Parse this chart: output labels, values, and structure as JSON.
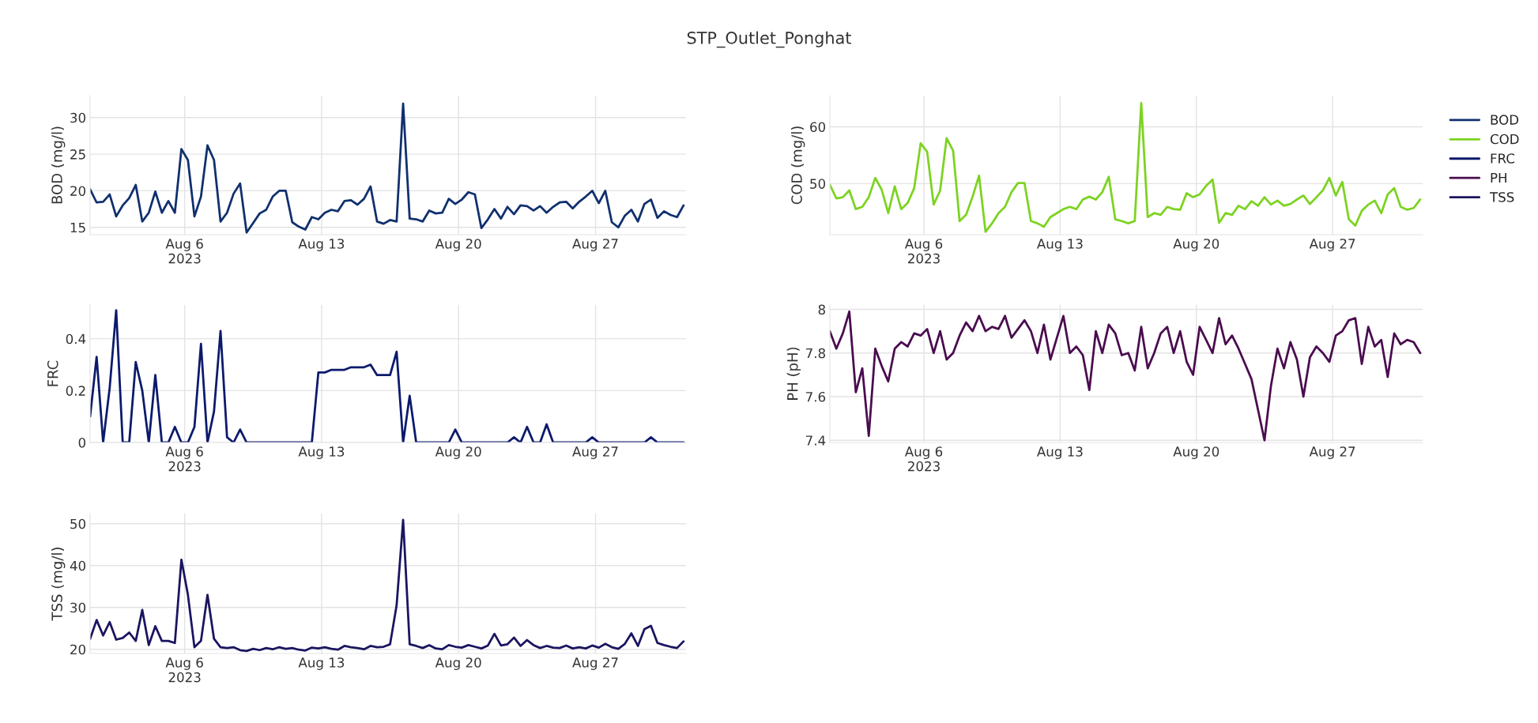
{
  "chart_data": [
    {
      "type": "line",
      "title": "STP_Outlet_Ponghat",
      "ylabel": "BOD (mg/l)",
      "grid": true,
      "legend": "top right",
      "x": [
        "2023-08-01T04:00",
        "2023-08-01T12:00",
        "2023-08-01T20:00",
        "2023-08-02T04:00",
        "2023-08-02T12:00",
        "2023-08-02T20:00",
        "2023-08-03T04:00",
        "2023-08-03T12:00",
        "2023-08-03T20:00",
        "2023-08-04T04:00",
        "2023-08-04T12:00",
        "2023-08-04T20:00",
        "2023-08-05T04:00",
        "2023-08-05T12:00",
        "2023-08-05T20:00",
        "2023-08-06T04:00",
        "2023-08-06T12:00",
        "2023-08-06T20:00",
        "2023-08-07T04:00",
        "2023-08-07T12:00",
        "2023-08-07T20:00",
        "2023-08-08T04:00",
        "2023-08-08T12:00",
        "2023-08-08T20:00",
        "2023-08-09T04:00",
        "2023-08-09T12:00",
        "2023-08-09T20:00",
        "2023-08-10T04:00",
        "2023-08-10T12:00",
        "2023-08-10T20:00",
        "2023-08-11T04:00",
        "2023-08-11T12:00",
        "2023-08-11T20:00",
        "2023-08-12T04:00",
        "2023-08-12T12:00",
        "2023-08-12T20:00",
        "2023-08-13T04:00",
        "2023-08-13T12:00",
        "2023-08-13T20:00",
        "2023-08-14T04:00",
        "2023-08-14T12:00",
        "2023-08-14T20:00",
        "2023-08-15T04:00",
        "2023-08-15T12:00",
        "2023-08-15T20:00",
        "2023-08-16T04:00",
        "2023-08-16T12:00",
        "2023-08-16T20:00",
        "2023-08-17T04:00",
        "2023-08-17T12:00",
        "2023-08-17T20:00",
        "2023-08-18T04:00",
        "2023-08-18T12:00",
        "2023-08-18T20:00",
        "2023-08-19T04:00",
        "2023-08-19T12:00",
        "2023-08-19T20:00",
        "2023-08-20T04:00",
        "2023-08-20T12:00",
        "2023-08-20T20:00",
        "2023-08-21T04:00",
        "2023-08-21T12:00",
        "2023-08-21T20:00",
        "2023-08-22T04:00",
        "2023-08-22T12:00",
        "2023-08-22T20:00",
        "2023-08-23T04:00",
        "2023-08-23T12:00",
        "2023-08-23T20:00",
        "2023-08-24T04:00",
        "2023-08-24T12:00",
        "2023-08-24T20:00",
        "2023-08-25T04:00",
        "2023-08-25T12:00",
        "2023-08-25T20:00",
        "2023-08-26T04:00",
        "2023-08-26T12:00",
        "2023-08-26T20:00",
        "2023-08-27T04:00",
        "2023-08-27T12:00",
        "2023-08-27T20:00",
        "2023-08-28T04:00",
        "2023-08-28T12:00",
        "2023-08-28T20:00",
        "2023-08-29T04:00",
        "2023-08-29T12:00",
        "2023-08-29T20:00",
        "2023-08-30T04:00",
        "2023-08-30T12:00",
        "2023-08-30T20:00",
        "2023-08-31T04:00",
        "2023-08-31T12:00"
      ],
      "xlim": [
        "2023-08-01T04:00",
        "2023-08-31T15:00"
      ],
      "xticks": [
        {
          "value": "2023-08-06",
          "label": "Aug 6\n2023"
        },
        {
          "value": "2023-08-13",
          "label": "Aug 13"
        },
        {
          "value": "2023-08-20",
          "label": "Aug 20"
        },
        {
          "value": "2023-08-27",
          "label": "Aug 27"
        }
      ],
      "ylim": [
        14,
        33
      ],
      "yticks": [
        15,
        20,
        25,
        30
      ],
      "series": [
        {
          "name": "BOD",
          "color": "#10306e",
          "values": [
            20.2,
            18.4,
            18.5,
            19.5,
            16.5,
            18.0,
            19.0,
            20.8,
            15.8,
            17.0,
            19.9,
            17.0,
            18.6,
            17.0,
            25.7,
            24.2,
            16.5,
            19.2,
            26.2,
            24.2,
            15.8,
            17.0,
            19.6,
            21.0,
            14.3,
            15.6,
            16.9,
            17.4,
            19.2,
            20.0,
            20.0,
            15.7,
            15.1,
            14.7,
            16.4,
            16.1,
            17.0,
            17.4,
            17.2,
            18.6,
            18.7,
            18.1,
            18.9,
            20.6,
            15.8,
            15.5,
            16.0,
            15.8,
            31.9,
            16.2,
            16.1,
            15.8,
            17.3,
            16.9,
            17.0,
            18.9,
            18.2,
            18.8,
            19.8,
            19.5,
            14.9,
            16.1,
            17.5,
            16.2,
            17.8,
            16.8,
            18.0,
            17.9,
            17.3,
            17.9,
            17.0,
            17.8,
            18.4,
            18.5,
            17.6,
            18.5,
            19.2,
            20.0,
            18.3,
            20.0,
            15.7,
            15.0,
            16.6,
            17.4,
            15.8,
            18.2,
            18.8,
            16.3,
            17.2,
            16.7,
            16.4,
            18.0
          ]
        }
      ]
    },
    {
      "type": "line",
      "ylabel": "COD (mg/l)",
      "grid": true,
      "legend": "top right",
      "x": [
        "2023-08-01T04:00",
        "2023-08-01T12:00",
        "2023-08-01T20:00",
        "2023-08-02T04:00",
        "2023-08-02T12:00",
        "2023-08-02T20:00",
        "2023-08-03T04:00",
        "2023-08-03T12:00",
        "2023-08-03T20:00",
        "2023-08-04T04:00",
        "2023-08-04T12:00",
        "2023-08-04T20:00",
        "2023-08-05T04:00",
        "2023-08-05T12:00",
        "2023-08-05T20:00",
        "2023-08-06T04:00",
        "2023-08-06T12:00",
        "2023-08-06T20:00",
        "2023-08-07T04:00",
        "2023-08-07T12:00",
        "2023-08-07T20:00",
        "2023-08-08T04:00",
        "2023-08-08T12:00",
        "2023-08-08T20:00",
        "2023-08-09T04:00",
        "2023-08-09T12:00",
        "2023-08-09T20:00",
        "2023-08-10T04:00",
        "2023-08-10T12:00",
        "2023-08-10T20:00",
        "2023-08-11T04:00",
        "2023-08-11T12:00",
        "2023-08-11T20:00",
        "2023-08-12T04:00",
        "2023-08-12T12:00",
        "2023-08-12T20:00",
        "2023-08-13T04:00",
        "2023-08-13T12:00",
        "2023-08-13T20:00",
        "2023-08-14T04:00",
        "2023-08-14T12:00",
        "2023-08-14T20:00",
        "2023-08-15T04:00",
        "2023-08-15T12:00",
        "2023-08-15T20:00",
        "2023-08-16T04:00",
        "2023-08-16T12:00",
        "2023-08-16T20:00",
        "2023-08-17T04:00",
        "2023-08-17T12:00",
        "2023-08-17T20:00",
        "2023-08-18T04:00",
        "2023-08-18T12:00",
        "2023-08-18T20:00",
        "2023-08-19T04:00",
        "2023-08-19T12:00",
        "2023-08-19T20:00",
        "2023-08-20T04:00",
        "2023-08-20T12:00",
        "2023-08-20T20:00",
        "2023-08-21T04:00",
        "2023-08-21T12:00",
        "2023-08-21T20:00",
        "2023-08-22T04:00",
        "2023-08-22T12:00",
        "2023-08-22T20:00",
        "2023-08-23T04:00",
        "2023-08-23T12:00",
        "2023-08-23T20:00",
        "2023-08-24T04:00",
        "2023-08-24T12:00",
        "2023-08-24T20:00",
        "2023-08-25T04:00",
        "2023-08-25T12:00",
        "2023-08-25T20:00",
        "2023-08-26T04:00",
        "2023-08-26T12:00",
        "2023-08-26T20:00",
        "2023-08-27T04:00",
        "2023-08-27T12:00",
        "2023-08-27T20:00",
        "2023-08-28T04:00",
        "2023-08-28T12:00",
        "2023-08-28T20:00",
        "2023-08-29T04:00",
        "2023-08-29T12:00",
        "2023-08-29T20:00",
        "2023-08-30T04:00",
        "2023-08-30T12:00",
        "2023-08-30T20:00",
        "2023-08-31T04:00",
        "2023-08-31T12:00"
      ],
      "xlim": [
        "2023-08-01T04:00",
        "2023-08-31T15:00"
      ],
      "xticks": [
        {
          "value": "2023-08-06",
          "label": "Aug 6\n2023"
        },
        {
          "value": "2023-08-13",
          "label": "Aug 13"
        },
        {
          "value": "2023-08-20",
          "label": "Aug 20"
        },
        {
          "value": "2023-08-27",
          "label": "Aug 27"
        }
      ],
      "ylim": [
        41,
        65.5
      ],
      "yticks": [
        50,
        60
      ],
      "series": [
        {
          "name": "COD",
          "color": "#7dd321",
          "values": [
            49.8,
            47.4,
            47.6,
            48.8,
            45.5,
            45.9,
            47.6,
            51.0,
            48.9,
            44.8,
            49.5,
            45.5,
            46.6,
            49.2,
            57.1,
            55.6,
            46.3,
            48.8,
            58.0,
            55.8,
            43.4,
            44.5,
            47.7,
            51.4,
            41.5,
            43.0,
            44.8,
            45.9,
            48.5,
            50.1,
            50.1,
            43.4,
            43.0,
            42.4,
            44.1,
            44.8,
            45.5,
            45.9,
            45.5,
            47.2,
            47.7,
            47.2,
            48.5,
            51.2,
            43.7,
            43.4,
            43.0,
            43.4,
            64.2,
            44.1,
            44.8,
            44.5,
            45.9,
            45.5,
            45.4,
            48.3,
            47.6,
            48.1,
            49.6,
            50.7,
            43.1,
            44.8,
            44.5,
            46.1,
            45.5,
            46.9,
            46.1,
            47.6,
            46.3,
            47.0,
            46.1,
            46.4,
            47.2,
            47.9,
            46.4,
            47.6,
            48.8,
            51.0,
            47.9,
            50.3,
            43.7,
            42.6,
            45.2,
            46.3,
            47.0,
            44.8,
            48.1,
            49.2,
            45.9,
            45.4,
            45.7,
            47.2
          ]
        }
      ]
    },
    {
      "type": "line",
      "ylabel": "FRC",
      "grid": true,
      "legend": "top right",
      "x": [
        "2023-08-01T04:00",
        "2023-08-01T12:00",
        "2023-08-01T20:00",
        "2023-08-02T04:00",
        "2023-08-02T12:00",
        "2023-08-02T20:00",
        "2023-08-03T04:00",
        "2023-08-03T12:00",
        "2023-08-03T20:00",
        "2023-08-04T04:00",
        "2023-08-04T12:00",
        "2023-08-04T20:00",
        "2023-08-05T04:00",
        "2023-08-05T12:00",
        "2023-08-05T20:00",
        "2023-08-06T04:00",
        "2023-08-06T12:00",
        "2023-08-06T20:00",
        "2023-08-07T04:00",
        "2023-08-07T12:00",
        "2023-08-07T20:00",
        "2023-08-08T04:00",
        "2023-08-08T12:00",
        "2023-08-08T20:00",
        "2023-08-09T04:00",
        "2023-08-09T12:00",
        "2023-08-09T20:00",
        "2023-08-10T04:00",
        "2023-08-10T12:00",
        "2023-08-10T20:00",
        "2023-08-11T04:00",
        "2023-08-11T12:00",
        "2023-08-11T20:00",
        "2023-08-12T04:00",
        "2023-08-12T12:00",
        "2023-08-12T20:00",
        "2023-08-13T04:00",
        "2023-08-13T12:00",
        "2023-08-13T20:00",
        "2023-08-14T04:00",
        "2023-08-14T12:00",
        "2023-08-14T20:00",
        "2023-08-15T04:00",
        "2023-08-15T12:00",
        "2023-08-15T20:00",
        "2023-08-16T04:00",
        "2023-08-16T12:00",
        "2023-08-16T20:00",
        "2023-08-17T04:00",
        "2023-08-17T12:00",
        "2023-08-17T20:00",
        "2023-08-18T04:00",
        "2023-08-18T12:00",
        "2023-08-18T20:00",
        "2023-08-19T04:00",
        "2023-08-19T12:00",
        "2023-08-19T20:00",
        "2023-08-20T04:00",
        "2023-08-20T12:00",
        "2023-08-20T20:00",
        "2023-08-21T04:00",
        "2023-08-21T12:00",
        "2023-08-21T20:00",
        "2023-08-22T04:00",
        "2023-08-22T12:00",
        "2023-08-22T20:00",
        "2023-08-23T04:00",
        "2023-08-23T12:00",
        "2023-08-23T20:00",
        "2023-08-24T04:00",
        "2023-08-24T12:00",
        "2023-08-24T20:00",
        "2023-08-25T04:00",
        "2023-08-25T12:00",
        "2023-08-25T20:00",
        "2023-08-26T04:00",
        "2023-08-26T12:00",
        "2023-08-26T20:00",
        "2023-08-27T04:00",
        "2023-08-27T12:00",
        "2023-08-27T20:00",
        "2023-08-28T04:00",
        "2023-08-28T12:00",
        "2023-08-28T20:00",
        "2023-08-29T04:00",
        "2023-08-29T12:00",
        "2023-08-29T20:00",
        "2023-08-30T04:00",
        "2023-08-30T12:00",
        "2023-08-30T20:00",
        "2023-08-31T04:00",
        "2023-08-31T12:00"
      ],
      "xlim": [
        "2023-08-01T04:00",
        "2023-08-31T15:00"
      ],
      "xticks": [
        {
          "value": "2023-08-06",
          "label": "Aug 6\n2023"
        },
        {
          "value": "2023-08-13",
          "label": "Aug 13"
        },
        {
          "value": "2023-08-20",
          "label": "Aug 20"
        },
        {
          "value": "2023-08-27",
          "label": "Aug 27"
        }
      ],
      "ylim": [
        0,
        0.53
      ],
      "yticks": [
        0,
        0.2,
        0.4
      ],
      "series": [
        {
          "name": "FRC",
          "color": "#0c1a6c",
          "values": [
            0.1,
            0.33,
            0,
            0.21,
            0.51,
            0,
            0,
            0.31,
            0.2,
            0,
            0.26,
            0,
            0,
            0.06,
            0,
            0,
            0.06,
            0.38,
            0,
            0.12,
            0.43,
            0.02,
            0,
            0.05,
            0,
            0,
            0,
            0,
            0,
            0,
            0,
            0,
            0,
            0,
            0,
            0.27,
            0.27,
            0.28,
            0.28,
            0.28,
            0.29,
            0.29,
            0.29,
            0.3,
            0.26,
            0.26,
            0.26,
            0.35,
            0,
            0.18,
            0,
            0,
            0,
            0,
            0,
            0,
            0.05,
            0,
            0,
            0,
            0,
            0,
            0,
            0,
            0,
            0.02,
            0,
            0.06,
            0,
            0,
            0.07,
            0,
            0,
            0,
            0,
            0,
            0,
            0.02,
            0,
            0,
            0,
            0,
            0,
            0,
            0,
            0,
            0.02,
            0,
            0,
            0,
            0,
            0
          ]
        }
      ]
    },
    {
      "type": "line",
      "ylabel": "PH (pH)",
      "grid": true,
      "legend": "top right",
      "x": [
        "2023-08-01T04:00",
        "2023-08-01T12:00",
        "2023-08-01T20:00",
        "2023-08-02T04:00",
        "2023-08-02T12:00",
        "2023-08-02T20:00",
        "2023-08-03T04:00",
        "2023-08-03T12:00",
        "2023-08-03T20:00",
        "2023-08-04T04:00",
        "2023-08-04T12:00",
        "2023-08-04T20:00",
        "2023-08-05T04:00",
        "2023-08-05T12:00",
        "2023-08-05T20:00",
        "2023-08-06T04:00",
        "2023-08-06T12:00",
        "2023-08-06T20:00",
        "2023-08-07T04:00",
        "2023-08-07T12:00",
        "2023-08-07T20:00",
        "2023-08-08T04:00",
        "2023-08-08T12:00",
        "2023-08-08T20:00",
        "2023-08-09T04:00",
        "2023-08-09T12:00",
        "2023-08-09T20:00",
        "2023-08-10T04:00",
        "2023-08-10T12:00",
        "2023-08-10T20:00",
        "2023-08-11T04:00",
        "2023-08-11T12:00",
        "2023-08-11T20:00",
        "2023-08-12T04:00",
        "2023-08-12T12:00",
        "2023-08-12T20:00",
        "2023-08-13T04:00",
        "2023-08-13T12:00",
        "2023-08-13T20:00",
        "2023-08-14T04:00",
        "2023-08-14T12:00",
        "2023-08-14T20:00",
        "2023-08-15T04:00",
        "2023-08-15T12:00",
        "2023-08-15T20:00",
        "2023-08-16T04:00",
        "2023-08-16T12:00",
        "2023-08-16T20:00",
        "2023-08-17T04:00",
        "2023-08-17T12:00",
        "2023-08-17T20:00",
        "2023-08-18T04:00",
        "2023-08-18T12:00",
        "2023-08-18T20:00",
        "2023-08-19T04:00",
        "2023-08-19T12:00",
        "2023-08-19T20:00",
        "2023-08-20T04:00",
        "2023-08-20T12:00",
        "2023-08-20T20:00",
        "2023-08-21T04:00",
        "2023-08-21T12:00",
        "2023-08-21T20:00",
        "2023-08-22T04:00",
        "2023-08-22T12:00",
        "2023-08-22T20:00",
        "2023-08-23T04:00",
        "2023-08-23T12:00",
        "2023-08-23T20:00",
        "2023-08-24T04:00",
        "2023-08-24T12:00",
        "2023-08-24T20:00",
        "2023-08-25T04:00",
        "2023-08-25T12:00",
        "2023-08-25T20:00",
        "2023-08-26T04:00",
        "2023-08-26T12:00",
        "2023-08-26T20:00",
        "2023-08-27T04:00",
        "2023-08-27T12:00",
        "2023-08-27T20:00",
        "2023-08-28T04:00",
        "2023-08-28T12:00",
        "2023-08-28T20:00",
        "2023-08-29T04:00",
        "2023-08-29T12:00",
        "2023-08-29T20:00",
        "2023-08-30T04:00",
        "2023-08-30T12:00",
        "2023-08-30T20:00",
        "2023-08-31T04:00",
        "2023-08-31T12:00"
      ],
      "xlim": [
        "2023-08-01T04:00",
        "2023-08-31T15:00"
      ],
      "xticks": [
        {
          "value": "2023-08-06",
          "label": "Aug 6\n2023"
        },
        {
          "value": "2023-08-13",
          "label": "Aug 13"
        },
        {
          "value": "2023-08-20",
          "label": "Aug 20"
        },
        {
          "value": "2023-08-27",
          "label": "Aug 27"
        }
      ],
      "ylim": [
        7.39,
        8.02
      ],
      "yticks": [
        7.4,
        7.6,
        7.8,
        8
      ],
      "series": [
        {
          "name": "PH",
          "color": "#4a0c4f",
          "values": [
            7.9,
            7.82,
            7.89,
            7.99,
            7.62,
            7.73,
            7.42,
            7.82,
            7.74,
            7.67,
            7.82,
            7.85,
            7.83,
            7.89,
            7.88,
            7.91,
            7.8,
            7.9,
            7.77,
            7.8,
            7.88,
            7.94,
            7.9,
            7.97,
            7.9,
            7.92,
            7.91,
            7.97,
            7.87,
            7.91,
            7.95,
            7.9,
            7.8,
            7.93,
            7.77,
            7.87,
            7.97,
            7.8,
            7.83,
            7.79,
            7.63,
            7.9,
            7.8,
            7.93,
            7.89,
            7.79,
            7.8,
            7.72,
            7.92,
            7.73,
            7.8,
            7.89,
            7.92,
            7.8,
            7.9,
            7.76,
            7.7,
            7.92,
            7.86,
            7.8,
            7.96,
            7.84,
            7.88,
            7.82,
            7.75,
            7.68,
            7.54,
            7.4,
            7.65,
            7.82,
            7.73,
            7.85,
            7.77,
            7.6,
            7.78,
            7.83,
            7.8,
            7.76,
            7.88,
            7.9,
            7.95,
            7.96,
            7.75,
            7.92,
            7.83,
            7.86,
            7.69,
            7.89,
            7.84,
            7.86,
            7.85,
            7.8
          ]
        }
      ]
    },
    {
      "type": "line",
      "ylabel": "TSS (mg/l)",
      "grid": true,
      "legend": "top right",
      "x": [
        "2023-08-01T04:00",
        "2023-08-01T12:00",
        "2023-08-01T20:00",
        "2023-08-02T04:00",
        "2023-08-02T12:00",
        "2023-08-02T20:00",
        "2023-08-03T04:00",
        "2023-08-03T12:00",
        "2023-08-03T20:00",
        "2023-08-04T04:00",
        "2023-08-04T12:00",
        "2023-08-04T20:00",
        "2023-08-05T04:00",
        "2023-08-05T12:00",
        "2023-08-05T20:00",
        "2023-08-06T04:00",
        "2023-08-06T12:00",
        "2023-08-06T20:00",
        "2023-08-07T04:00",
        "2023-08-07T12:00",
        "2023-08-07T20:00",
        "2023-08-08T04:00",
        "2023-08-08T12:00",
        "2023-08-08T20:00",
        "2023-08-09T04:00",
        "2023-08-09T12:00",
        "2023-08-09T20:00",
        "2023-08-10T04:00",
        "2023-08-10T12:00",
        "2023-08-10T20:00",
        "2023-08-11T04:00",
        "2023-08-11T12:00",
        "2023-08-11T20:00",
        "2023-08-12T04:00",
        "2023-08-12T12:00",
        "2023-08-12T20:00",
        "2023-08-13T04:00",
        "2023-08-13T12:00",
        "2023-08-13T20:00",
        "2023-08-14T04:00",
        "2023-08-14T12:00",
        "2023-08-14T20:00",
        "2023-08-15T04:00",
        "2023-08-15T12:00",
        "2023-08-15T20:00",
        "2023-08-16T04:00",
        "2023-08-16T12:00",
        "2023-08-16T20:00",
        "2023-08-17T04:00",
        "2023-08-17T12:00",
        "2023-08-17T20:00",
        "2023-08-18T04:00",
        "2023-08-18T12:00",
        "2023-08-18T20:00",
        "2023-08-19T04:00",
        "2023-08-19T12:00",
        "2023-08-19T20:00",
        "2023-08-20T04:00",
        "2023-08-20T12:00",
        "2023-08-20T20:00",
        "2023-08-21T04:00",
        "2023-08-21T12:00",
        "2023-08-21T20:00",
        "2023-08-22T04:00",
        "2023-08-22T12:00",
        "2023-08-22T20:00",
        "2023-08-23T04:00",
        "2023-08-23T12:00",
        "2023-08-23T20:00",
        "2023-08-24T04:00",
        "2023-08-24T12:00",
        "2023-08-24T20:00",
        "2023-08-25T04:00",
        "2023-08-25T12:00",
        "2023-08-25T20:00",
        "2023-08-26T04:00",
        "2023-08-26T12:00",
        "2023-08-26T20:00",
        "2023-08-27T04:00",
        "2023-08-27T12:00",
        "2023-08-27T20:00",
        "2023-08-28T04:00",
        "2023-08-28T12:00",
        "2023-08-28T20:00",
        "2023-08-29T04:00",
        "2023-08-29T12:00",
        "2023-08-29T20:00",
        "2023-08-30T04:00",
        "2023-08-30T12:00",
        "2023-08-30T20:00",
        "2023-08-31T04:00",
        "2023-08-31T12:00"
      ],
      "xlim": [
        "2023-08-01T04:00",
        "2023-08-31T15:00"
      ],
      "xticks": [
        {
          "value": "2023-08-06",
          "label": "Aug 6\n2023"
        },
        {
          "value": "2023-08-13",
          "label": "Aug 13"
        },
        {
          "value": "2023-08-20",
          "label": "Aug 20"
        },
        {
          "value": "2023-08-27",
          "label": "Aug 27"
        }
      ],
      "ylim": [
        19,
        52.4
      ],
      "yticks": [
        20,
        30,
        40,
        50
      ],
      "series": [
        {
          "name": "TSS",
          "color": "#1a1560",
          "values": [
            22.5,
            27.0,
            23.3,
            26.5,
            22.3,
            22.7,
            24.0,
            22.0,
            29.4,
            21.0,
            25.5,
            22.0,
            22.0,
            21.5,
            41.4,
            33.0,
            20.5,
            22.0,
            33.0,
            22.5,
            20.5,
            20.3,
            20.5,
            19.8,
            19.6,
            20.1,
            19.8,
            20.3,
            20.0,
            20.5,
            20.1,
            20.3,
            19.9,
            19.7,
            20.4,
            20.2,
            20.5,
            20.1,
            19.9,
            20.8,
            20.5,
            20.3,
            20.0,
            20.8,
            20.5,
            20.6,
            21.2,
            30.5,
            50.9,
            21.2,
            20.8,
            20.3,
            21.0,
            20.2,
            20.0,
            21.0,
            20.6,
            20.4,
            21.0,
            20.6,
            20.2,
            20.9,
            23.7,
            20.9,
            21.2,
            22.8,
            20.8,
            22.2,
            21.0,
            20.3,
            20.8,
            20.4,
            20.3,
            20.9,
            20.2,
            20.5,
            20.2,
            20.9,
            20.4,
            21.3,
            20.5,
            20.1,
            21.3,
            23.8,
            20.8,
            24.8,
            25.6,
            21.5,
            21.0,
            20.6,
            20.3,
            21.9
          ]
        }
      ]
    }
  ]
}
